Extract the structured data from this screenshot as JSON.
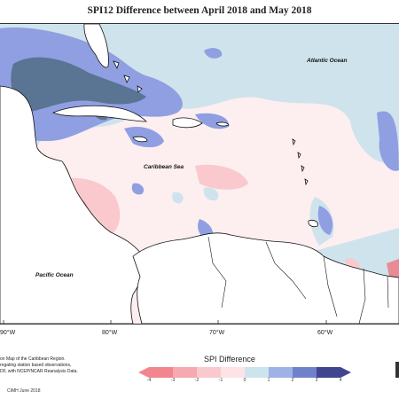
{
  "title": "SPI12 Difference between April 2018 and May 2018",
  "map": {
    "labels": {
      "atlantic": "Atlantic Ocean",
      "caribbean": "Caribbean Sea",
      "pacific": "Pacific Ocean"
    },
    "longitudes": [
      "90°W",
      "80°W",
      "70°W",
      "60°W"
    ]
  },
  "description_text": [
    "on Map of the Caribbean Region.",
    "regating station based observations,",
    "DF, with NCEP/NCAR Reanalysis Data."
  ],
  "credit": "CIMH June 2018",
  "legend": {
    "title": "SPI Difference",
    "tick_labels": [
      "-4",
      "-3",
      "-2",
      "-1",
      "0",
      "1",
      "2",
      "3",
      "4"
    ],
    "colors": [
      "#f2858f",
      "#f5a9b0",
      "#f9c9cd",
      "#fde3e5",
      "#ffffff",
      "#cde3ee",
      "#9fb2e6",
      "#6f82c9",
      "#3f468f"
    ]
  },
  "colors": {
    "land": "#ffffff",
    "ocean_base": "#fdeef0",
    "wet_light": "#cfe3ec",
    "wet_mid": "#8f9fe2",
    "wet_dark": "#5a7494",
    "dry_light": "#f9c9cd",
    "dry_mid": "#e98b95"
  }
}
